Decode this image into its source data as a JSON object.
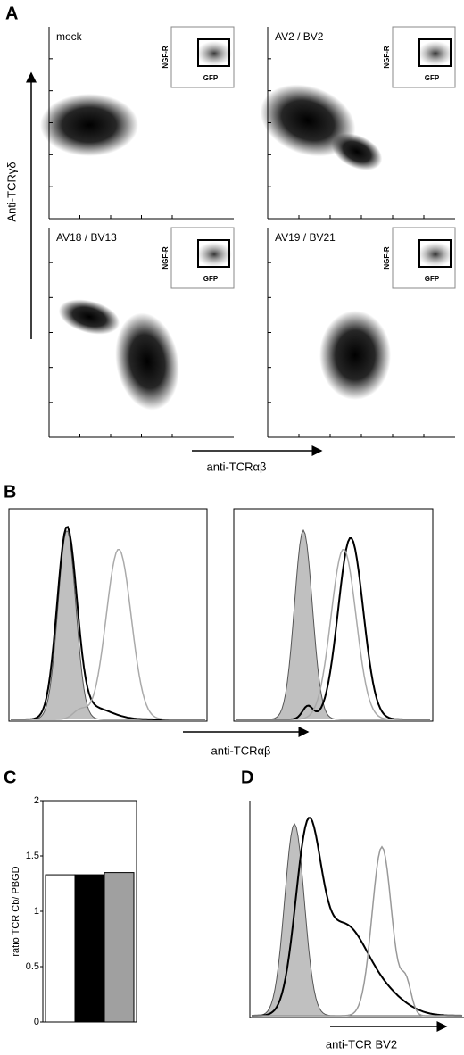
{
  "panels": {
    "a": {
      "label": "A",
      "y_axis_label": "Anti-TCRγδ",
      "x_axis_label": "anti-TCRαβ",
      "plots": [
        {
          "title": "mock",
          "inset_y": "NGF-R",
          "inset_x": "GFP"
        },
        {
          "title": "AV2 / BV2",
          "inset_y": "NGF-R",
          "inset_x": "GFP"
        },
        {
          "title": "AV18 / BV13",
          "inset_y": "NGF-R",
          "inset_x": "GFP"
        },
        {
          "title": "AV19 / BV21",
          "inset_y": "NGF-R",
          "inset_x": "GFP"
        }
      ]
    },
    "b": {
      "label": "B",
      "x_axis_label": "anti-TCRαβ"
    },
    "d": {
      "label": "D",
      "x_axis_label": "anti-TCR BV2"
    }
  },
  "chart_data": {
    "type": "bar",
    "label": "C",
    "y_axis_label": "ratio TCR Cb/ PBGD",
    "categories": [
      null,
      null,
      null
    ],
    "values": [
      1.33,
      1.33,
      1.35
    ],
    "colors": [
      "#ffffff",
      "#000000",
      "#a0a0a0"
    ],
    "ylim": [
      0,
      2
    ],
    "yticks": [
      0,
      0.5,
      1,
      1.5,
      2
    ]
  }
}
